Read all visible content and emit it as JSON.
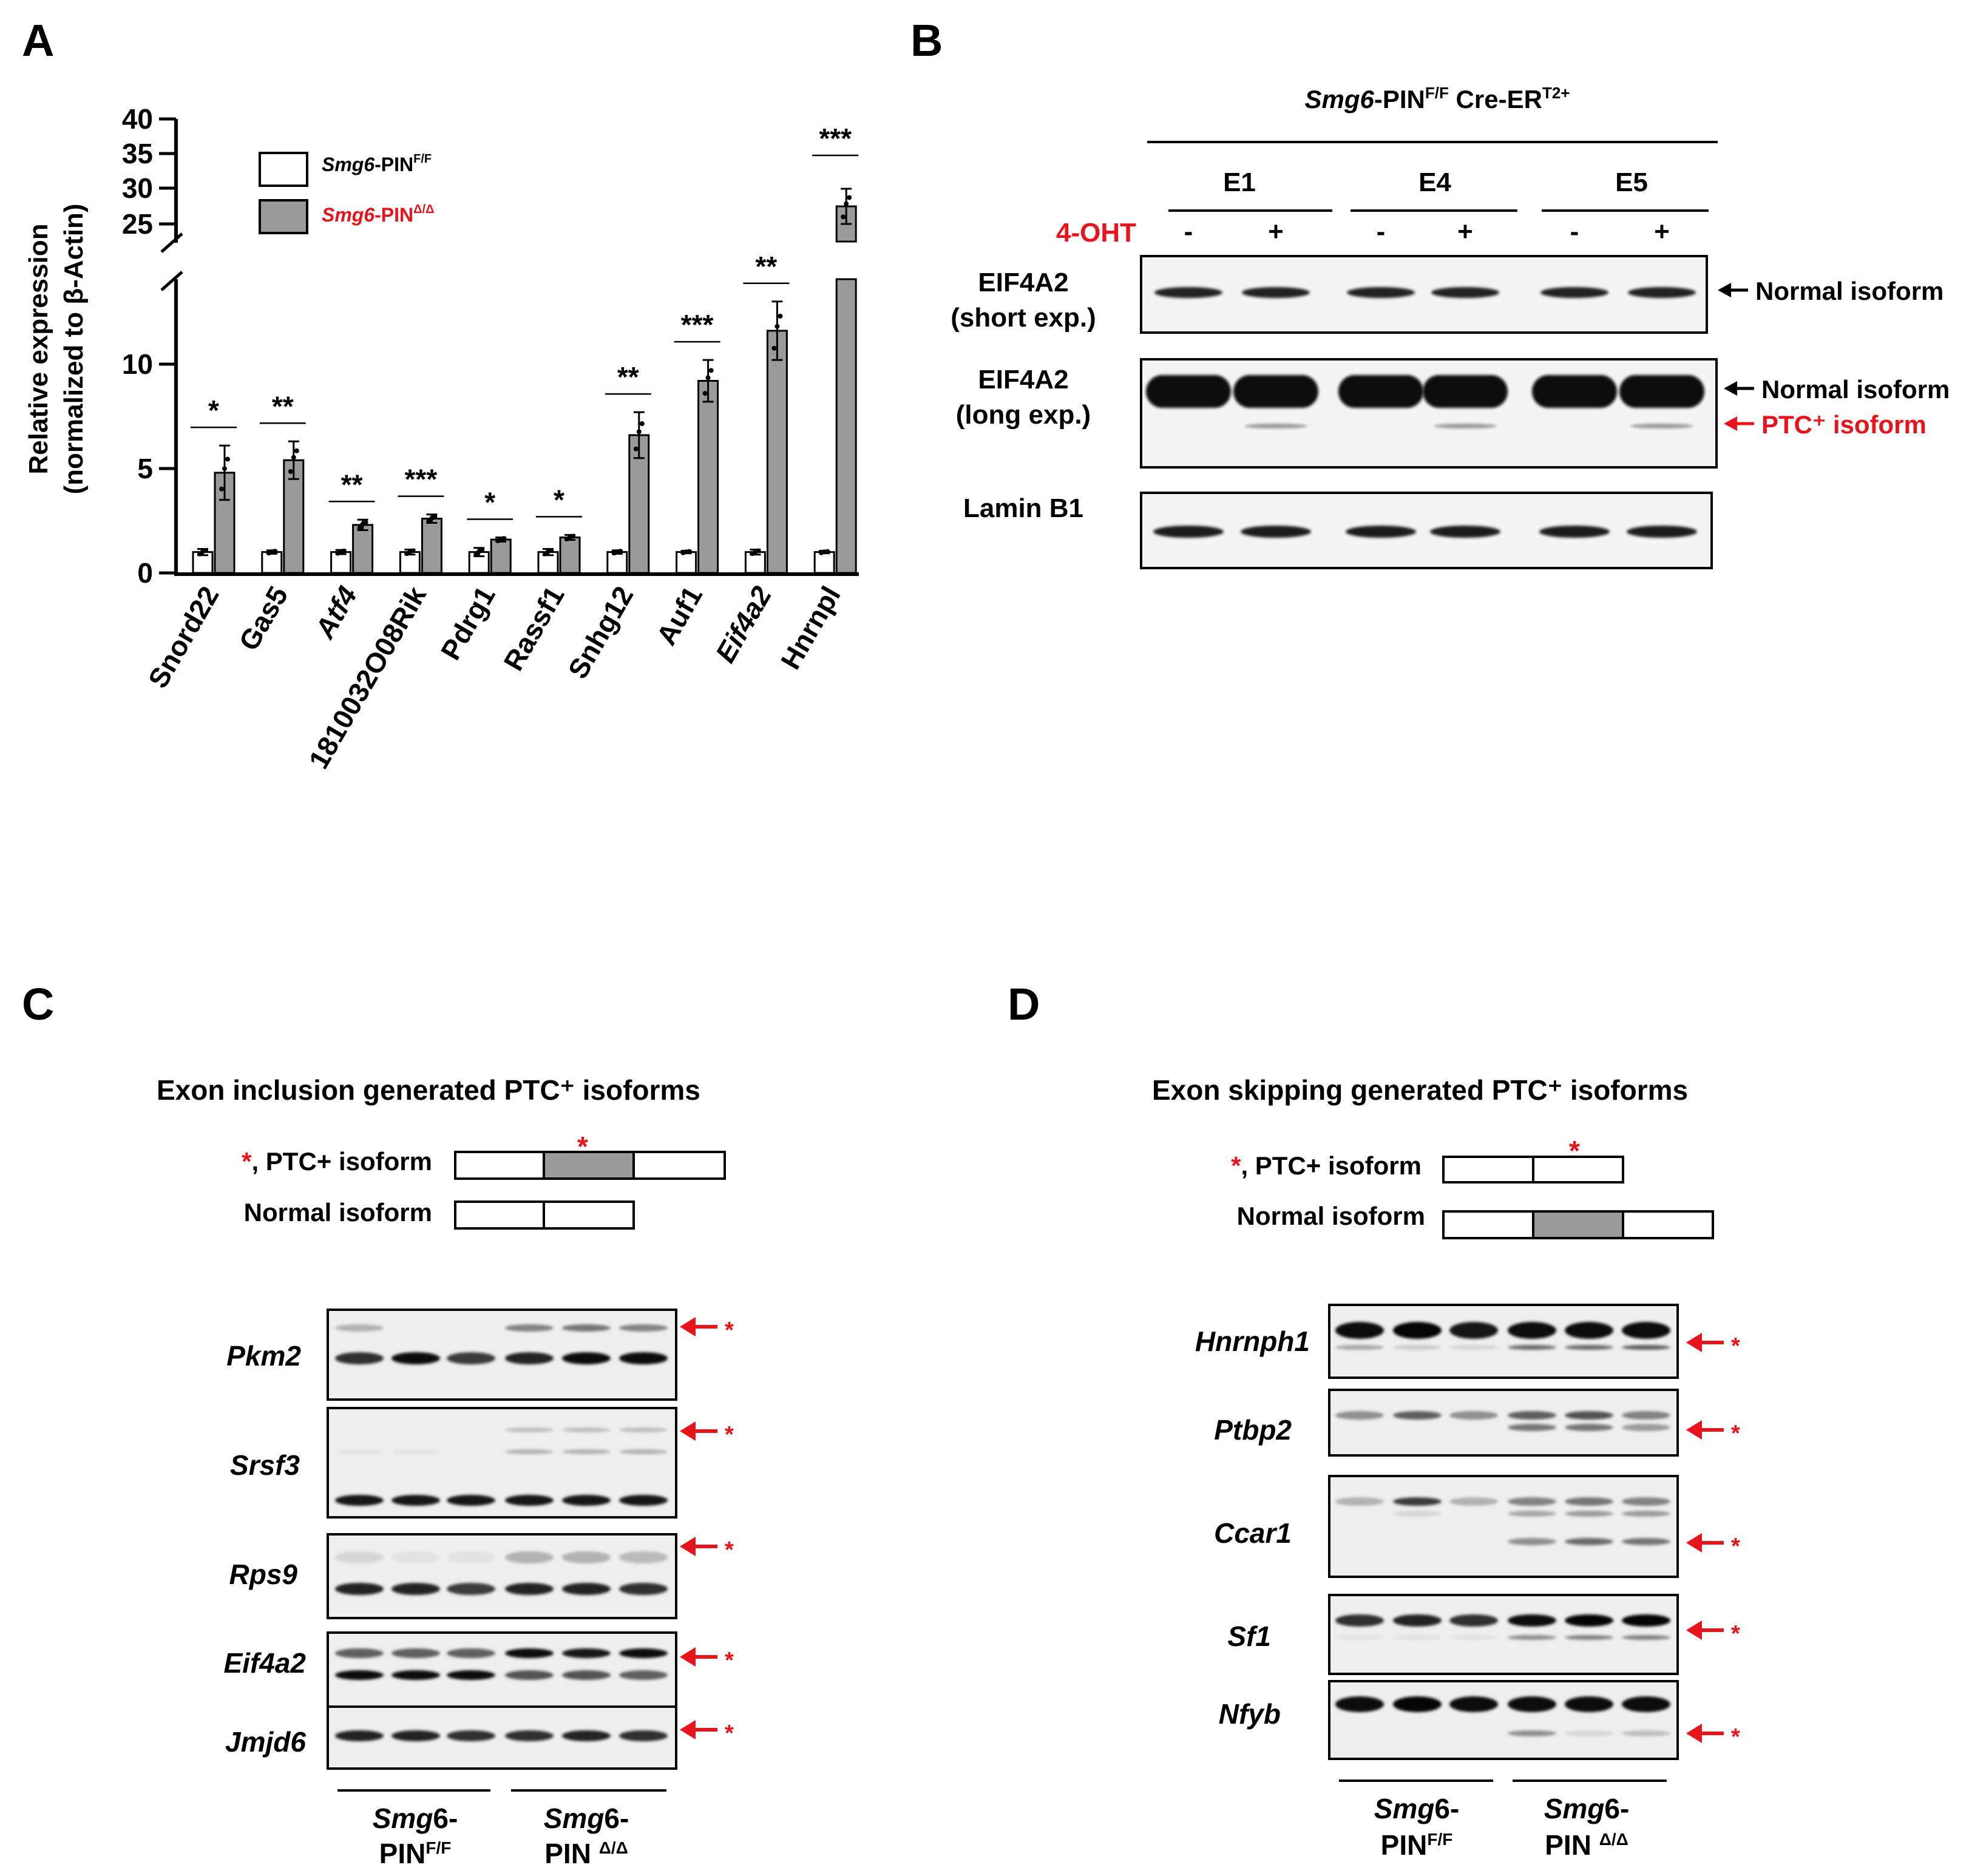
{
  "panels": {
    "a": "A",
    "b": "B",
    "c": "C",
    "d": "D"
  },
  "panel_a": {
    "legend": [
      {
        "prefix": "Smg6",
        "base": "-PIN",
        "sup": "F/F",
        "fill": "#ffffff",
        "color": "#000000"
      },
      {
        "prefix": "Smg6",
        "base": "-PIN",
        "sup": "Δ/Δ",
        "fill": "#9a9a9a",
        "color": "#e8141b"
      }
    ],
    "ylabel_line1": "Relative expression",
    "ylabel_line2": "(normalized to β-Actin)"
  },
  "chart_data": {
    "type": "bar",
    "title": "",
    "xlabel": "",
    "ylabel": "Relative expression (normalized to β-Actin)",
    "axis_break": [
      13.5,
      25
    ],
    "ylim": [
      0,
      40
    ],
    "yticks": [
      "0",
      "5",
      "10",
      "25",
      "30",
      "35",
      "40"
    ],
    "categories": [
      "Snord22",
      "Gas5",
      "Atf4",
      "1810032O08Rik",
      "Pdrg1",
      "Rassf1",
      "Snhg12",
      "Auf1",
      "Eif4a2",
      "Hnrnpl"
    ],
    "series": [
      {
        "name": "Smg6-PINF/F",
        "values": [
          1.0,
          1.0,
          1.0,
          1.0,
          1.0,
          1.0,
          1.0,
          1.0,
          1.0,
          1.0
        ],
        "err": [
          0.15,
          0.08,
          0.1,
          0.12,
          0.2,
          0.15,
          0.08,
          0.06,
          0.12,
          0.06
        ]
      },
      {
        "name": "Smg6-PINΔ/Δ",
        "values": [
          4.8,
          5.4,
          2.3,
          2.6,
          1.6,
          1.7,
          6.6,
          9.2,
          11.6,
          27.5
        ],
        "err": [
          1.3,
          0.9,
          0.25,
          0.2,
          0.1,
          0.12,
          1.1,
          1.0,
          1.4,
          2.5
        ]
      }
    ],
    "significance": [
      "*",
      "**",
      "**",
      "***",
      "*",
      "*",
      "**",
      "***",
      "**",
      "***"
    ]
  },
  "panel_b": {
    "header_italic": "Smg6",
    "header_base": "-PIN",
    "header_sup1": "F/F",
    "header_mid": " Cre-ER",
    "header_sup2": "T2+",
    "clones": [
      "E1",
      "E4",
      "E5"
    ],
    "treatment_label": "4-OHT",
    "treatment_marks": [
      "-",
      "+",
      "-",
      "+",
      "-",
      "+"
    ],
    "rows": [
      {
        "line1": "EIF4A2",
        "line2": "(short exp.)"
      },
      {
        "line1": "EIF4A2",
        "line2": "(long exp.)"
      },
      {
        "line1": "Lamin B1",
        "line2": ""
      }
    ],
    "arrows": [
      {
        "label": "Normal isoform",
        "color": "#000000"
      },
      {
        "label": "Normal isoform",
        "color": "#000000"
      },
      {
        "label": "PTC⁺ isoform",
        "color": "#e8141b"
      }
    ]
  },
  "panel_c": {
    "title": "Exon inclusion generated PTC⁺ isoforms",
    "ptc_star": "*",
    "ptc_label": ", PTC+ isoform",
    "normal_label": "Normal isoform",
    "genes": [
      "Pkm2",
      "Srsf3",
      "Rps9",
      "Eif4a2",
      "Jmjd6"
    ],
    "group1_line1": "Smg6-",
    "group1_base": "PIN",
    "group1_sup": "F/F",
    "group2_line1": "Smg6-",
    "group2_base": "PIN ",
    "group2_sup": "Δ/Δ"
  },
  "panel_d": {
    "title": "Exon skipping generated PTC⁺ isoforms",
    "ptc_star": "*",
    "ptc_label": ", PTC+ isoform",
    "normal_label": "Normal isoform",
    "genes": [
      "Hnrnph1",
      "Ptbp2",
      "Ccar1",
      "Sf1",
      "Nfyb"
    ],
    "group1_line1": "Smg6-",
    "group1_base": "PIN",
    "group1_sup": "F/F",
    "group2_line1": "Smg6-",
    "group2_base": "PIN ",
    "group2_sup": "Δ/Δ"
  },
  "colors": {
    "red": "#e8141b",
    "bar_gray": "#9a9a9a",
    "gel_bg": "#eeeeee",
    "blot_bg": "#f4f4f4"
  }
}
